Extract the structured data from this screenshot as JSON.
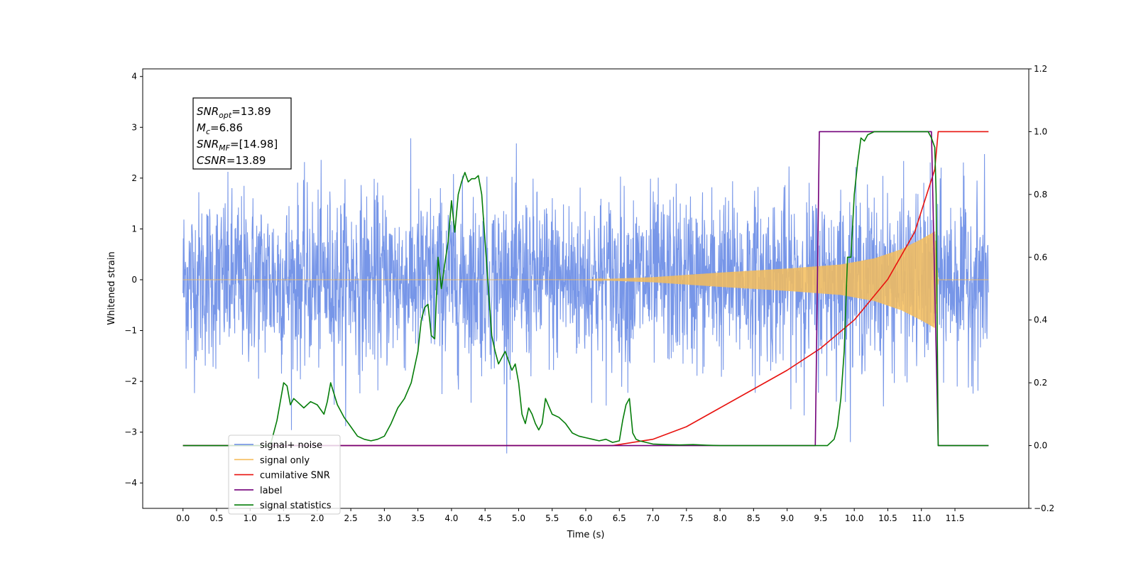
{
  "chart_data": {
    "type": "line",
    "xlabel": "Time (s)",
    "ylabel": "Whitened strain",
    "xlim": [
      -0.6,
      12.6
    ],
    "ylim_left": [
      -4.5,
      4.15
    ],
    "ylim_right": [
      -0.2,
      1.2
    ],
    "xticks": [
      "0.0",
      "0.5",
      "1.0",
      "1.5",
      "2.0",
      "2.5",
      "3.0",
      "3.5",
      "4.0",
      "4.5",
      "5.0",
      "5.5",
      "6.0",
      "6.5",
      "7.0",
      "7.5",
      "8.0",
      "8.5",
      "9.0",
      "9.5",
      "10.0",
      "10.5",
      "11.0",
      "11.5"
    ],
    "yticks_left": [
      "4",
      "3",
      "2",
      "1",
      "0",
      "−1",
      "−2",
      "−3",
      "−4"
    ],
    "yticks_right": [
      "1.2",
      "1.0",
      "0.8",
      "0.6",
      "0.4",
      "0.2",
      "0.0",
      "−0.2"
    ],
    "info_box": [
      {
        "label": "SNR",
        "sub": "opt",
        "value": "=13.89"
      },
      {
        "label": "M",
        "sub": "c",
        "value": "=6.86"
      },
      {
        "label": "SNR",
        "sub": "MF",
        "value": "=[14.98]"
      },
      {
        "label": "CSNR",
        "sub": "",
        "value": "=13.89"
      }
    ],
    "legend_position": "lower-left",
    "series": [
      {
        "name": "signal+ noise",
        "color": "#6b8de6",
        "axis": "left",
        "noise_std": 0.85,
        "x_range": [
          0.0,
          12.0
        ]
      },
      {
        "name": "signal only",
        "color": "#f5bd5b",
        "axis": "left",
        "envelope_x": [
          0.0,
          6.0,
          7.0,
          8.0,
          9.0,
          9.8,
          10.3,
          10.7,
          11.0,
          11.2,
          11.25,
          12.0
        ],
        "envelope_y": [
          0.0,
          0.0,
          0.05,
          0.14,
          0.22,
          0.3,
          0.42,
          0.6,
          0.8,
          0.95,
          0.0,
          0.0
        ]
      },
      {
        "name": "cumilative SNR",
        "color": "#e8120f",
        "axis": "right",
        "x": [
          0.0,
          6.4,
          7.0,
          7.5,
          8.0,
          8.5,
          9.0,
          9.5,
          10.0,
          10.5,
          10.9,
          11.2,
          11.25,
          11.3,
          12.0
        ],
        "y": [
          0.0,
          0.0,
          0.02,
          0.06,
          0.12,
          0.18,
          0.24,
          0.31,
          0.4,
          0.53,
          0.68,
          0.88,
          1.0,
          1.0,
          1.0
        ]
      },
      {
        "name": "label",
        "color": "#73007a",
        "axis": "right",
        "x": [
          0.0,
          9.42,
          9.48,
          11.15,
          11.25,
          12.0
        ],
        "y": [
          0.0,
          0.0,
          1.0,
          1.0,
          0.0,
          0.0
        ]
      },
      {
        "name": "signal statistics",
        "color": "#057d09",
        "axis": "right",
        "x": [
          0.0,
          1.3,
          1.35,
          1.4,
          1.5,
          1.55,
          1.6,
          1.65,
          1.7,
          1.8,
          1.9,
          2.0,
          2.1,
          2.15,
          2.2,
          2.3,
          2.4,
          2.5,
          2.6,
          2.7,
          2.8,
          2.9,
          3.0,
          3.1,
          3.2,
          3.3,
          3.4,
          3.5,
          3.55,
          3.6,
          3.65,
          3.7,
          3.75,
          3.8,
          3.85,
          3.9,
          3.95,
          4.0,
          4.05,
          4.1,
          4.15,
          4.2,
          4.25,
          4.3,
          4.35,
          4.4,
          4.45,
          4.5,
          4.55,
          4.6,
          4.65,
          4.7,
          4.75,
          4.8,
          4.85,
          4.9,
          4.95,
          5.0,
          5.05,
          5.1,
          5.15,
          5.2,
          5.25,
          5.3,
          5.35,
          5.4,
          5.5,
          5.6,
          5.7,
          5.8,
          5.9,
          6.0,
          6.1,
          6.2,
          6.3,
          6.4,
          6.5,
          6.55,
          6.6,
          6.65,
          6.7,
          6.75,
          6.8,
          6.9,
          7.0,
          7.2,
          7.4,
          7.6,
          7.8,
          8.0,
          8.5,
          9.0,
          9.5,
          9.6,
          9.7,
          9.75,
          9.8,
          9.85,
          9.9,
          9.95,
          10.0,
          10.05,
          10.1,
          10.15,
          10.2,
          10.3,
          10.5,
          11.0,
          11.1,
          11.15,
          11.2,
          11.22,
          11.25,
          11.3,
          11.35,
          12.0
        ],
        "y": [
          0.0,
          0.0,
          0.04,
          0.08,
          0.2,
          0.19,
          0.13,
          0.15,
          0.14,
          0.12,
          0.14,
          0.13,
          0.1,
          0.14,
          0.2,
          0.13,
          0.09,
          0.06,
          0.03,
          0.02,
          0.015,
          0.02,
          0.03,
          0.07,
          0.12,
          0.15,
          0.2,
          0.3,
          0.4,
          0.44,
          0.45,
          0.35,
          0.34,
          0.6,
          0.5,
          0.58,
          0.65,
          0.78,
          0.68,
          0.8,
          0.84,
          0.87,
          0.84,
          0.85,
          0.85,
          0.86,
          0.8,
          0.65,
          0.5,
          0.35,
          0.3,
          0.26,
          0.28,
          0.3,
          0.27,
          0.24,
          0.26,
          0.2,
          0.1,
          0.07,
          0.12,
          0.1,
          0.07,
          0.05,
          0.07,
          0.15,
          0.1,
          0.09,
          0.07,
          0.04,
          0.03,
          0.025,
          0.02,
          0.015,
          0.02,
          0.01,
          0.015,
          0.08,
          0.13,
          0.15,
          0.04,
          0.02,
          0.015,
          0.01,
          0.005,
          0.003,
          0.002,
          0.003,
          0.001,
          0.0,
          0.0,
          0.0,
          0.0,
          0.0,
          0.02,
          0.06,
          0.15,
          0.3,
          0.6,
          0.6,
          0.8,
          0.9,
          0.98,
          0.97,
          0.99,
          1.0,
          1.0,
          1.0,
          1.0,
          0.98,
          0.95,
          0.8,
          0.0,
          0.0,
          0.0,
          0.0
        ]
      }
    ]
  }
}
